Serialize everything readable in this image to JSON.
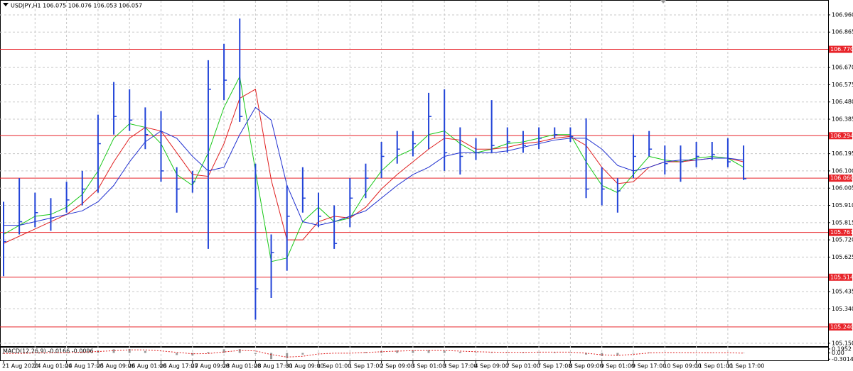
{
  "chart_data": {
    "type": "ohlc",
    "title": "USDJPY,H1  106.075 106.076 106.053 106.057",
    "categories": [
      "21 Aug 2020",
      null,
      "24 Aug 01:00",
      null,
      "24 Aug 17:00",
      null,
      "25 Aug 09:00",
      null,
      "26 Aug 01:00",
      null,
      "26 Aug 17:00",
      null,
      "27 Aug 09:00",
      null,
      "28 Aug 01:00",
      null,
      "28 Aug 17:00",
      null,
      "31 Aug 09:00",
      null,
      "1 Sep 01:00",
      null,
      "1 Sep 17:00",
      null,
      "2 Sep 09:00",
      null,
      "3 Sep 01:00",
      null,
      "3 Sep 17:00",
      null,
      "4 Sep 09:00",
      null,
      "7 Sep 01:00",
      null,
      "7 Sep 17:00",
      null,
      "8 Sep 09:00",
      null,
      "9 Sep 01:00",
      null,
      "9 Sep 17:00",
      null,
      "10 Sep 09:00",
      null,
      "11 Sep 01:00",
      null,
      "11 Sep 17:00",
      null
    ],
    "high": [
      105.93,
      106.06,
      105.98,
      105.95,
      106.04,
      106.1,
      106.41,
      106.59,
      106.55,
      106.45,
      106.43,
      106.12,
      106.1,
      106.71,
      106.8,
      106.94,
      106.14,
      105.75,
      106.02,
      106.12,
      105.98,
      105.91,
      106.06,
      106.14,
      106.26,
      106.32,
      106.32,
      106.53,
      106.55,
      106.34,
      106.28,
      106.49,
      106.34,
      106.32,
      106.34,
      106.34,
      106.34,
      106.39,
      106.12,
      106.06,
      106.3,
      106.32,
      106.24,
      106.24,
      106.26,
      106.26,
      106.28,
      106.24
    ],
    "low": [
      105.52,
      105.75,
      105.79,
      105.77,
      105.87,
      105.91,
      105.98,
      106.3,
      106.32,
      106.22,
      106.04,
      105.87,
      105.98,
      105.67,
      106.49,
      106.37,
      105.28,
      105.4,
      105.55,
      105.87,
      105.79,
      105.67,
      105.79,
      105.95,
      106.06,
      106.14,
      106.18,
      106.22,
      106.1,
      106.08,
      106.16,
      106.2,
      106.2,
      106.2,
      106.22,
      106.28,
      106.26,
      105.95,
      105.91,
      105.87,
      106.06,
      106.18,
      106.08,
      106.04,
      106.12,
      106.16,
      106.12,
      106.05
    ],
    "close": [
      105.71,
      105.82,
      105.87,
      105.84,
      105.94,
      106.0,
      106.25,
      106.4,
      106.38,
      106.3,
      106.1,
      106.0,
      106.04,
      106.55,
      106.6,
      106.4,
      105.45,
      105.65,
      105.85,
      105.95,
      105.85,
      105.7,
      105.95,
      106.06,
      106.18,
      106.22,
      106.25,
      106.4,
      106.2,
      106.18,
      106.2,
      106.24,
      106.26,
      106.24,
      106.28,
      106.3,
      106.29,
      106.0,
      106.0,
      105.99,
      106.18,
      106.22,
      106.14,
      106.15,
      106.18,
      106.19,
      106.15,
      106.057
    ],
    "color": "#2244d8",
    "ylim": [
      105.134,
      107.038
    ],
    "yticks": [
      {
        "value": 106.96,
        "label": "106.960"
      },
      106.865,
      {
        "value": 106.67,
        "label": "106.670"
      },
      106.575,
      {
        "value": 106.48,
        "label": "106.480"
      },
      106.385,
      106.195,
      {
        "value": 106.1,
        "label": "106.100"
      },
      106.005,
      {
        "value": 105.91,
        "label": "105.910"
      },
      105.815,
      {
        "value": 105.72,
        "label": "105.720"
      },
      105.625,
      105.435,
      {
        "value": 105.34,
        "label": "105.340"
      },
      {
        "value": 105.15,
        "label": "105.150"
      }
    ],
    "grid": true,
    "levels": [
      {
        "value": 106.77,
        "label": "106.770"
      },
      106.294,
      {
        "value": 106.06,
        "label": "106.060"
      },
      105.761,
      105.514,
      {
        "value": 105.24,
        "label": "105.240"
      }
    ],
    "level_color": "#e8242a",
    "ma": [
      {
        "color": "#18c818",
        "values": [
          105.75,
          105.8,
          105.85,
          105.86,
          105.9,
          105.97,
          106.1,
          106.28,
          106.36,
          106.34,
          106.25,
          106.08,
          106.02,
          106.2,
          106.45,
          106.62,
          106.1,
          105.6,
          105.62,
          105.82,
          105.9,
          105.82,
          105.84,
          105.98,
          106.1,
          106.18,
          106.22,
          106.3,
          106.32,
          106.25,
          106.2,
          106.22,
          106.25,
          106.26,
          106.28,
          106.3,
          106.3,
          106.15,
          106.02,
          105.98,
          106.08,
          106.18,
          106.16,
          106.15,
          106.17,
          106.18,
          106.17,
          106.12
        ]
      },
      {
        "color": "#e02020",
        "values": [
          105.7,
          105.74,
          105.78,
          105.82,
          105.86,
          105.92,
          106.0,
          106.15,
          106.28,
          106.34,
          106.32,
          106.2,
          106.08,
          106.07,
          106.25,
          106.5,
          106.55,
          106.05,
          105.72,
          105.72,
          105.82,
          105.85,
          105.84,
          105.9,
          106.0,
          106.08,
          106.15,
          106.22,
          106.28,
          106.27,
          106.22,
          106.22,
          106.23,
          106.25,
          106.26,
          106.28,
          106.29,
          106.24,
          106.12,
          106.03,
          106.04,
          106.12,
          106.15,
          106.15,
          106.16,
          106.17,
          106.17,
          106.15
        ]
      },
      {
        "color": "#2030d0",
        "values": [
          105.8,
          105.8,
          105.82,
          105.84,
          105.86,
          105.88,
          105.93,
          106.02,
          106.15,
          106.26,
          106.32,
          106.28,
          106.18,
          106.1,
          106.12,
          106.3,
          106.45,
          106.38,
          106.02,
          105.82,
          105.8,
          105.82,
          105.85,
          105.88,
          105.95,
          106.02,
          106.08,
          106.12,
          106.18,
          106.2,
          106.2,
          106.2,
          106.21,
          106.23,
          106.25,
          106.27,
          106.28,
          106.28,
          106.22,
          106.13,
          106.1,
          106.12,
          106.15,
          106.16,
          106.16,
          106.17,
          106.17,
          106.16
        ]
      }
    ],
    "macd": {
      "title": "MACD(12,26,9) -0.0166 -0.0096",
      "values": [
        -0.05,
        0.0,
        0.02,
        0.02,
        0.04,
        0.07,
        0.12,
        0.18,
        0.19,
        0.1,
        0.0,
        -0.1,
        -0.12,
        0.05,
        0.18,
        0.19,
        -0.05,
        -0.3,
        -0.25,
        -0.08,
        0.02,
        0.0,
        -0.02,
        0.05,
        0.1,
        0.12,
        0.13,
        0.14,
        0.11,
        0.06,
        0.03,
        0.03,
        0.03,
        0.04,
        0.04,
        0.04,
        0.03,
        -0.08,
        -0.15,
        -0.13,
        -0.03,
        0.03,
        0.02,
        0.01,
        0.01,
        0.01,
        0.0,
        -0.0166
      ],
      "signal": [
        -0.02,
        -0.02,
        0.0,
        0.01,
        0.02,
        0.04,
        0.07,
        0.11,
        0.15,
        0.15,
        0.1,
        0.03,
        -0.04,
        -0.03,
        0.05,
        0.12,
        0.1,
        -0.08,
        -0.2,
        -0.16,
        -0.05,
        -0.01,
        -0.01,
        0.02,
        0.06,
        0.09,
        0.11,
        0.12,
        0.12,
        0.09,
        0.06,
        0.04,
        0.03,
        0.03,
        0.04,
        0.04,
        0.04,
        -0.01,
        -0.09,
        -0.12,
        -0.07,
        0.0,
        0.02,
        0.02,
        0.01,
        0.01,
        0.01,
        -0.0096
      ],
      "ylim": [
        -0.36,
        0.26
      ],
      "yticks": [
        0.1952,
        {
          "value": 0,
          "label": "0.00"
        },
        -0.3014
      ],
      "hist_color": "#9a9a9a",
      "signal_color": "#e02020"
    }
  }
}
